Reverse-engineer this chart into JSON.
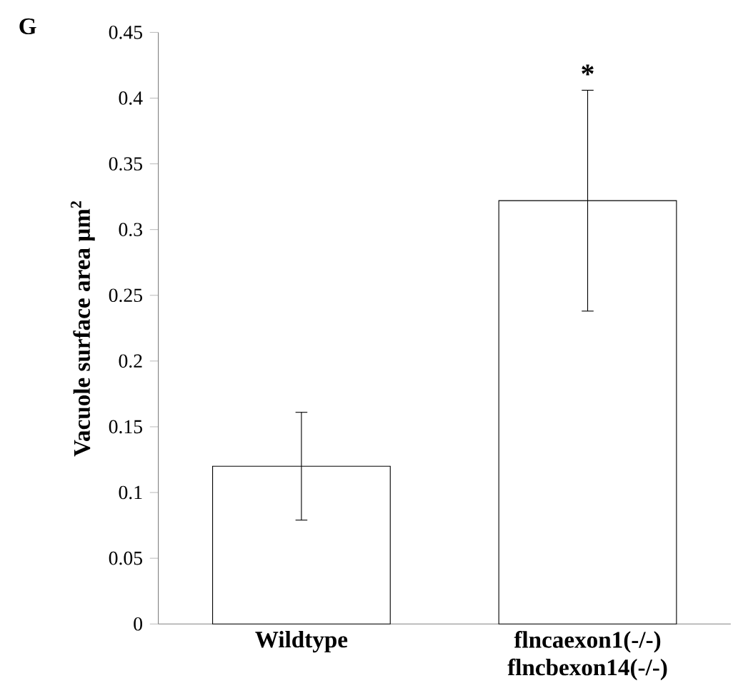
{
  "chart_data": {
    "type": "bar",
    "ylabel": "Vacuole surface area µm$^{2}$",
    "categories": [
      "Wildtype",
      "flncaexon1(-/-) flncbexon14(-/-)"
    ],
    "values": [
      0.12,
      0.322
    ],
    "errors": [
      0.041,
      0.084
    ],
    "color": "#ffffff",
    "ylim": [
      0,
      0.45
    ],
    "yticks": [
      0,
      0.05,
      0.1,
      0.15,
      0.2,
      0.25,
      0.3,
      0.35,
      0.4,
      0.45
    ],
    "grid": false,
    "annotations": [
      "G",
      "*"
    ]
  }
}
